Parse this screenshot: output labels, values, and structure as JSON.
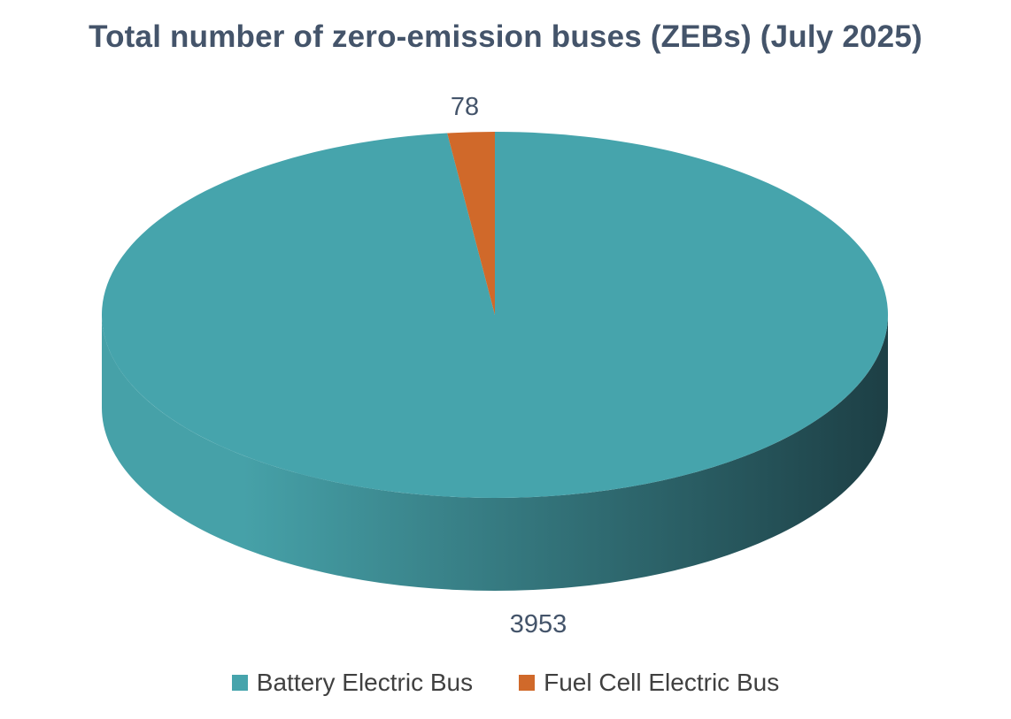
{
  "chart_data": {
    "type": "pie",
    "title": "Total number of zero-emission buses (ZEBs) (July 2025)",
    "slices": [
      {
        "label": "Battery Electric Bus",
        "value": 3953,
        "color": "#46A4AC",
        "side_color_light": "#46A1A8",
        "side_color_dark": "#1D3F45"
      },
      {
        "label": "Fuel Cell Electric Bus",
        "value": 78,
        "color": "#D0692A",
        "side_color_light": "#B85A22",
        "side_color_dark": "#7A3A14"
      }
    ],
    "data_labels": [
      "3953",
      "78"
    ],
    "legend_position": "bottom",
    "style": "3d"
  }
}
